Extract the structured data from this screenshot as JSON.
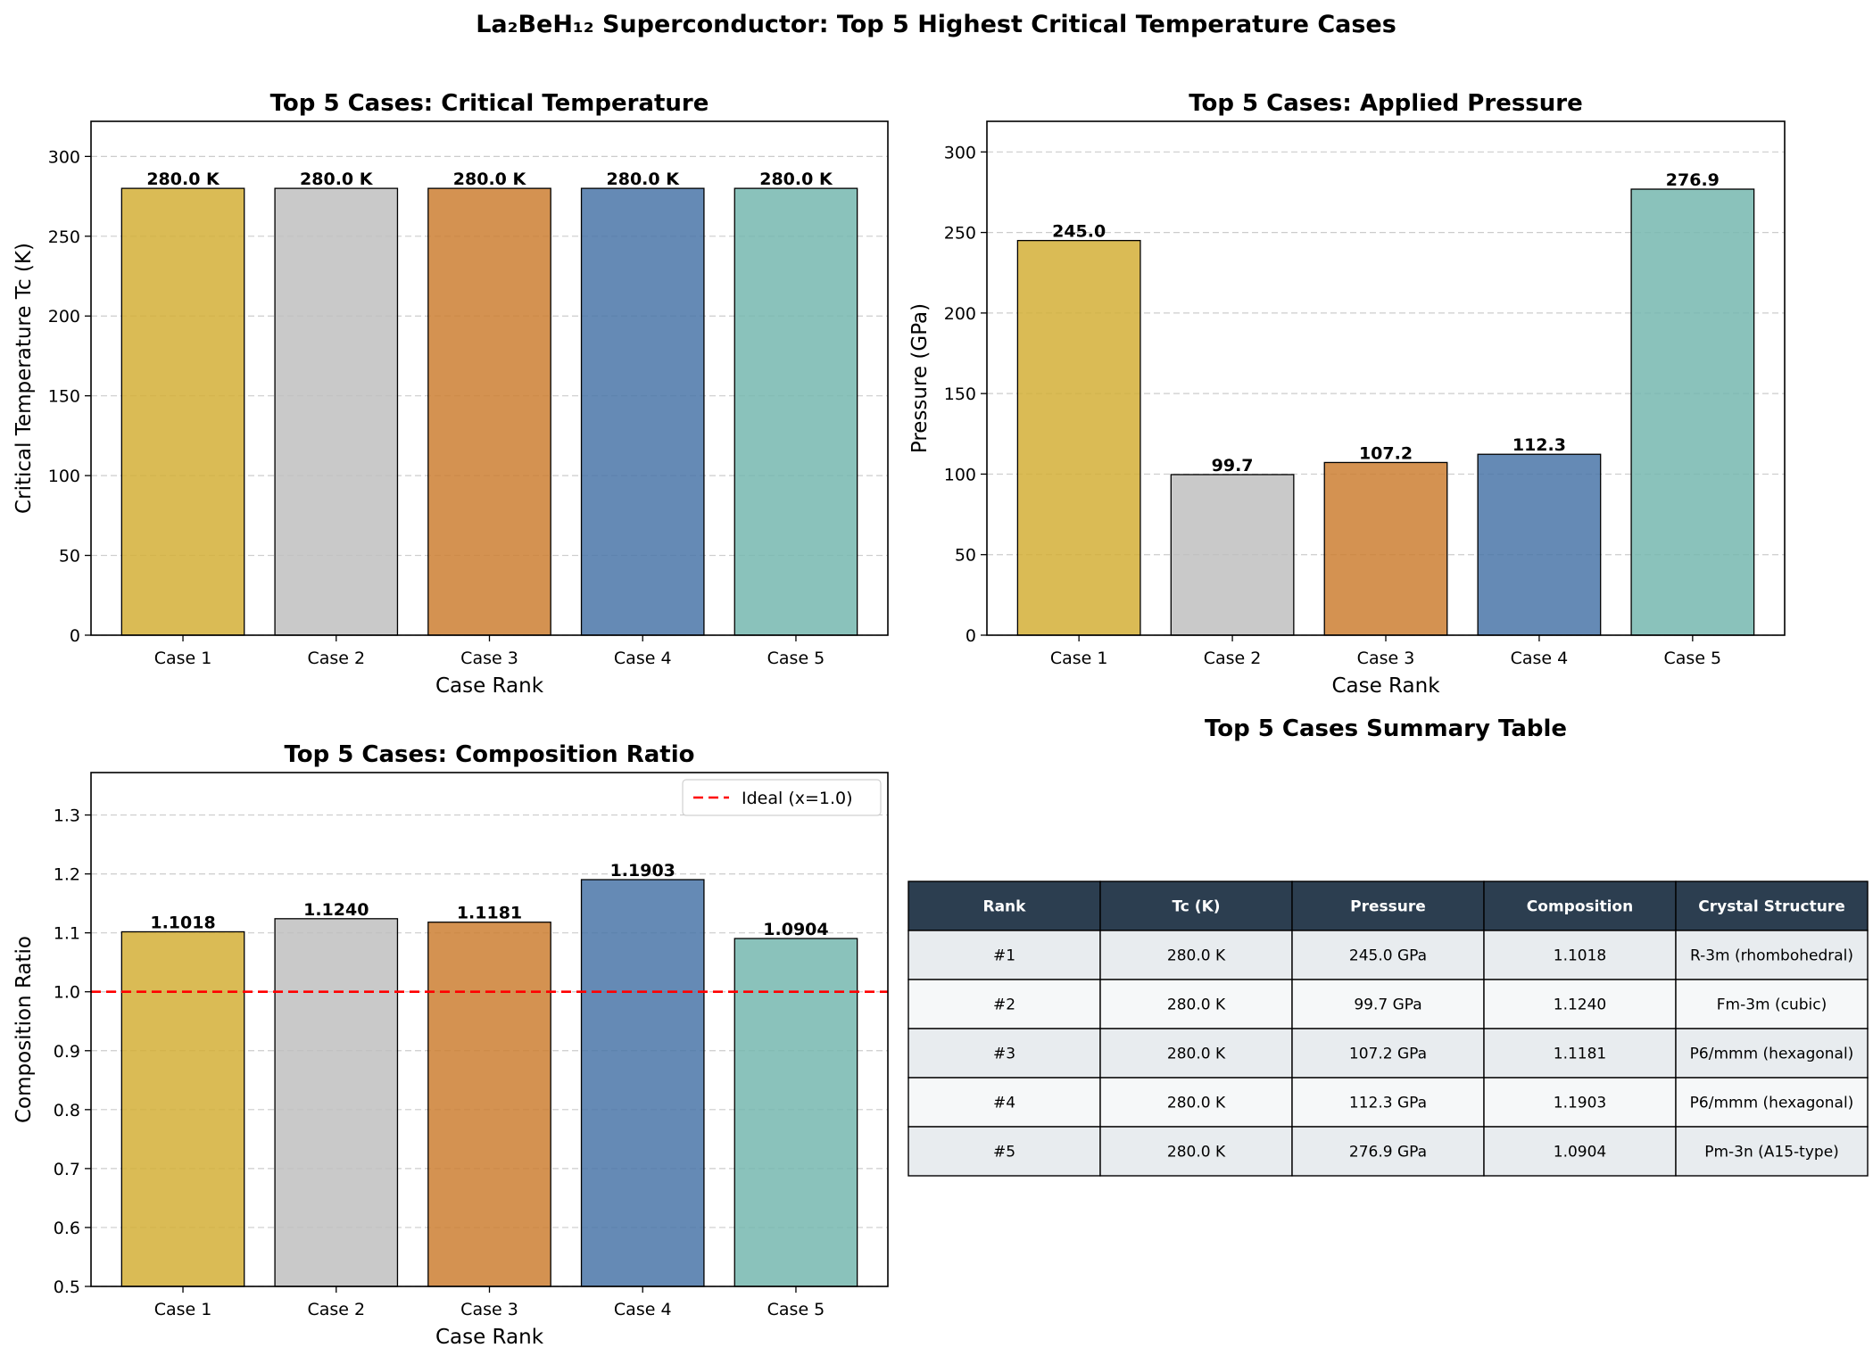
{
  "suptitle": "La₂BeH₁₂ Superconductor: Top 5 Highest Critical Temperature Cases",
  "colors": {
    "bars": [
      "#D4AF37",
      "#C0C0C0",
      "#CD7F32",
      "#4A76A8",
      "#76B7AF"
    ],
    "table_header": "#2C3E50",
    "table_row_odd": "#E8ECEF",
    "table_row_even": "#F6F8F9",
    "reference_line": "#FF0000"
  },
  "chart_data": [
    {
      "type": "bar",
      "title": "Top 5 Cases: Critical Temperature",
      "xlabel": "Case Rank",
      "ylabel": "Critical Temperature Tc (K)",
      "categories": [
        "Case 1",
        "Case 2",
        "Case 3",
        "Case 4",
        "Case 5"
      ],
      "values": [
        280.0,
        280.0,
        280.0,
        280.0,
        280.0
      ],
      "data_labels": [
        "280.0 K",
        "280.0 K",
        "280.0 K",
        "280.0 K",
        "280.0 K"
      ],
      "ylim": [
        0,
        322
      ],
      "yticks": [
        0,
        50,
        100,
        150,
        200,
        250,
        300
      ],
      "ytick_labels": [
        "0",
        "50",
        "100",
        "150",
        "200",
        "250",
        "300"
      ],
      "grid": "y-dashed"
    },
    {
      "type": "bar",
      "title": "Top 5 Cases: Applied Pressure",
      "xlabel": "Case Rank",
      "ylabel": "Pressure (GPa)",
      "categories": [
        "Case 1",
        "Case 2",
        "Case 3",
        "Case 4",
        "Case 5"
      ],
      "values": [
        245.0,
        99.7,
        107.2,
        112.3,
        276.9
      ],
      "data_labels": [
        "245.0",
        "99.7",
        "107.2",
        "112.3",
        "276.9"
      ],
      "ylim": [
        0,
        319
      ],
      "yticks": [
        0,
        50,
        100,
        150,
        200,
        250,
        300
      ],
      "ytick_labels": [
        "0",
        "50",
        "100",
        "150",
        "200",
        "250",
        "300"
      ],
      "grid": "y-dashed"
    },
    {
      "type": "bar",
      "title": "Top 5 Cases: Composition Ratio",
      "xlabel": "Case Rank",
      "ylabel": "Composition Ratio",
      "categories": [
        "Case 1",
        "Case 2",
        "Case 3",
        "Case 4",
        "Case 5"
      ],
      "values": [
        1.1018,
        1.124,
        1.1181,
        1.1903,
        1.0904
      ],
      "data_labels": [
        "1.1018",
        "1.1240",
        "1.1181",
        "1.1903",
        "1.0904"
      ],
      "ylim": [
        0.5,
        1.372
      ],
      "yticks": [
        0.5,
        0.6,
        0.7,
        0.8,
        0.9,
        1.0,
        1.1,
        1.2,
        1.3
      ],
      "ytick_labels": [
        "0.5",
        "0.6",
        "0.7",
        "0.8",
        "0.9",
        "1.0",
        "1.1",
        "1.2",
        "1.3"
      ],
      "grid": "y-dashed",
      "reference_line": {
        "y": 1.0,
        "label": "Ideal (x=1.0)",
        "style": "dashed"
      },
      "legend": "top-right"
    },
    {
      "type": "table",
      "title": "Top 5 Cases Summary Table",
      "columns": [
        "Rank",
        "Tc (K)",
        "Pressure",
        "Composition",
        "Crystal Structure"
      ],
      "rows": [
        [
          "#1",
          "280.0 K",
          "245.0 GPa",
          "1.1018",
          "R-3m (rhombohedral)"
        ],
        [
          "#2",
          "280.0 K",
          "99.7 GPa",
          "1.1240",
          "Fm-3m (cubic)"
        ],
        [
          "#3",
          "280.0 K",
          "107.2 GPa",
          "1.1181",
          "P6/mmm (hexagonal)"
        ],
        [
          "#4",
          "280.0 K",
          "112.3 GPa",
          "1.1903",
          "P6/mmm (hexagonal)"
        ],
        [
          "#5",
          "280.0 K",
          "276.9 GPa",
          "1.0904",
          "Pm-3n (A15-type)"
        ]
      ]
    }
  ]
}
